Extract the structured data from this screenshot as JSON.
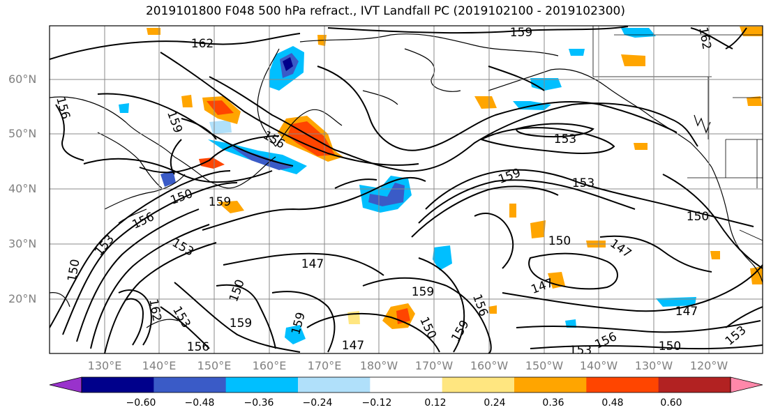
{
  "title": "2019101800 F048 500 hPa refract., IVT Landfall PC (2019102100 - 2019102300)",
  "lat_labels": [
    "60°N",
    "50°N",
    "40°N",
    "30°N",
    "20°N"
  ],
  "lon_labels": [
    "130°E",
    "140°E",
    "150°E",
    "160°E",
    "170°E",
    "180°W",
    "170°W",
    "160°W",
    "150°W",
    "140°W",
    "130°W",
    "120°W"
  ],
  "contour_labels": [
    "162",
    "159",
    "156",
    "153",
    "150",
    "147",
    "159",
    "162",
    "156",
    "159",
    "150",
    "159",
    "156",
    "153",
    "150",
    "153",
    "147",
    "159",
    "150",
    "159",
    "147",
    "159",
    "156",
    "150",
    "159",
    "153",
    "147",
    "150",
    "153",
    "156",
    "147",
    "153",
    "150",
    "162",
    "156",
    "153"
  ],
  "colorbar": {
    "ticks": [
      "−0.60",
      "−0.48",
      "−0.36",
      "−0.24",
      "−0.12",
      "0.12",
      "0.24",
      "0.36",
      "0.48",
      "0.60"
    ],
    "colors": [
      "#9932cc",
      "#00008b",
      "#3a5bc7",
      "#00bfff",
      "#b0e0fa",
      "#ffffff",
      "#ffe680",
      "#ffa500",
      "#ff4500",
      "#b22222",
      "#ff88aa"
    ]
  },
  "shading_colors": {
    "neg_strong": "#00008b",
    "neg_mid": "#3a5bc7",
    "neg_light": "#00bfff",
    "neg_faint": "#b0e0fa",
    "pos_faint": "#ffe680",
    "pos_light": "#ffa500",
    "pos_mid": "#ff4500"
  }
}
